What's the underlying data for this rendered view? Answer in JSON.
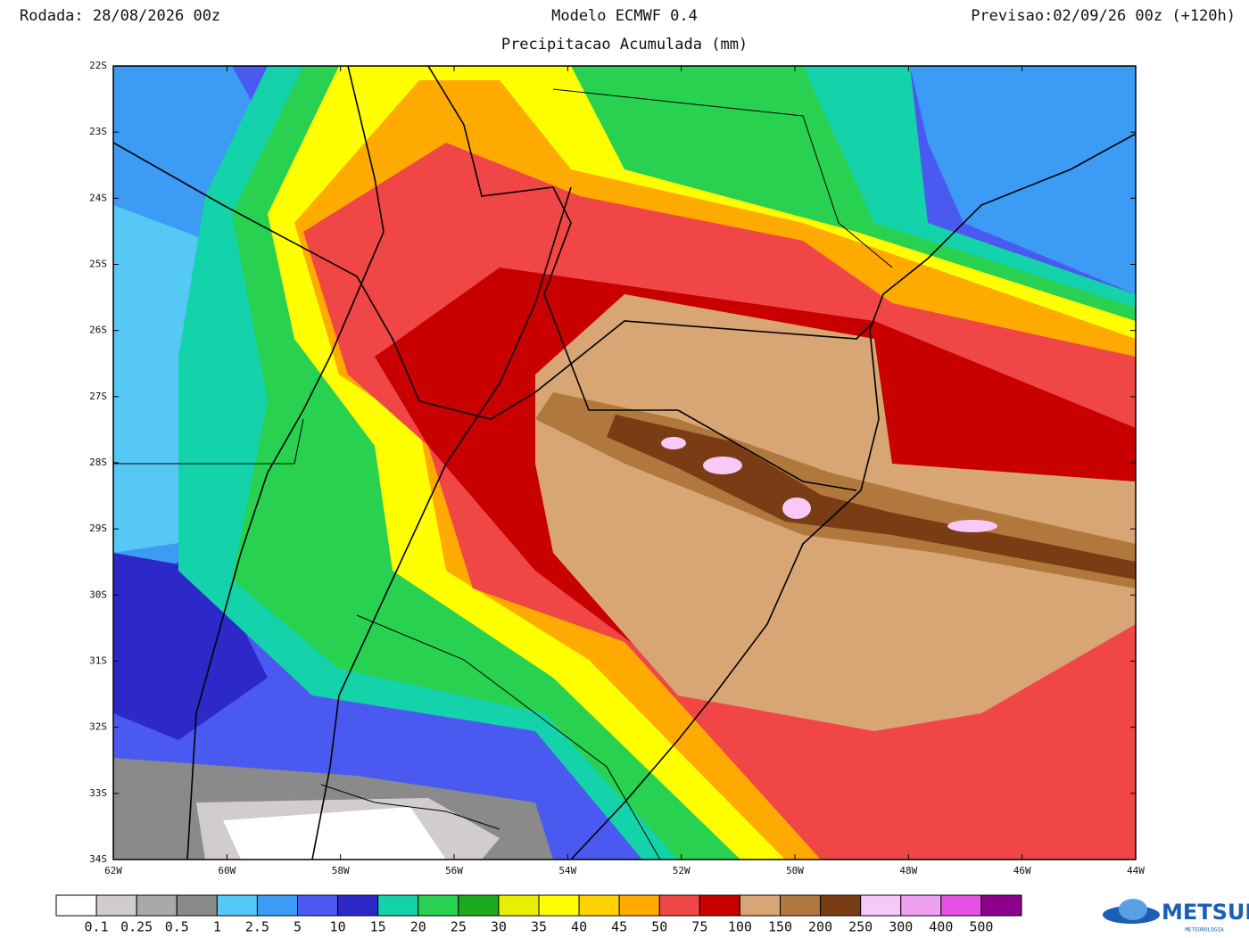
{
  "header": {
    "run": "Rodada: 28/08/2026 00z",
    "model": "Modelo ECMWF 0.4",
    "field": "Precipitacao Acumulada (mm)",
    "forecast": "Previsao:02/09/26 00z (+120h)"
  },
  "map": {
    "lat_labels": [
      "22S",
      "23S",
      "24S",
      "25S",
      "26S",
      "27S",
      "28S",
      "29S",
      "30S",
      "31S",
      "32S",
      "33S",
      "34S"
    ],
    "lon_labels": [
      "62W",
      "60W",
      "58W",
      "56W",
      "54W",
      "52W",
      "50W",
      "48W",
      "46W",
      "44W"
    ]
  },
  "colorbar": {
    "colors": [
      "#ffffff",
      "#d2cdcd",
      "#a9a9a9",
      "#8a8a8a",
      "#55c8f5",
      "#3c9bf5",
      "#4a5af0",
      "#2d28c8",
      "#14d2aa",
      "#28d250",
      "#1eaa1e",
      "#e6f000",
      "#ffff00",
      "#ffd200",
      "#ffaa00",
      "#f04646",
      "#c80000",
      "#d8a574",
      "#b0783c",
      "#7a3c14",
      "#f8c8f8",
      "#f0a0f0",
      "#e650e6",
      "#8c008c"
    ],
    "labels": [
      "0.1",
      "0.25",
      "0.5",
      "1",
      "2.5",
      "5",
      "10",
      "15",
      "20",
      "25",
      "30",
      "35",
      "40",
      "45",
      "50",
      "75",
      "100",
      "150",
      "200",
      "250",
      "300",
      "400",
      "500"
    ]
  },
  "logo": {
    "name": "METSUL",
    "tagline": "METEOROLOGIA"
  }
}
